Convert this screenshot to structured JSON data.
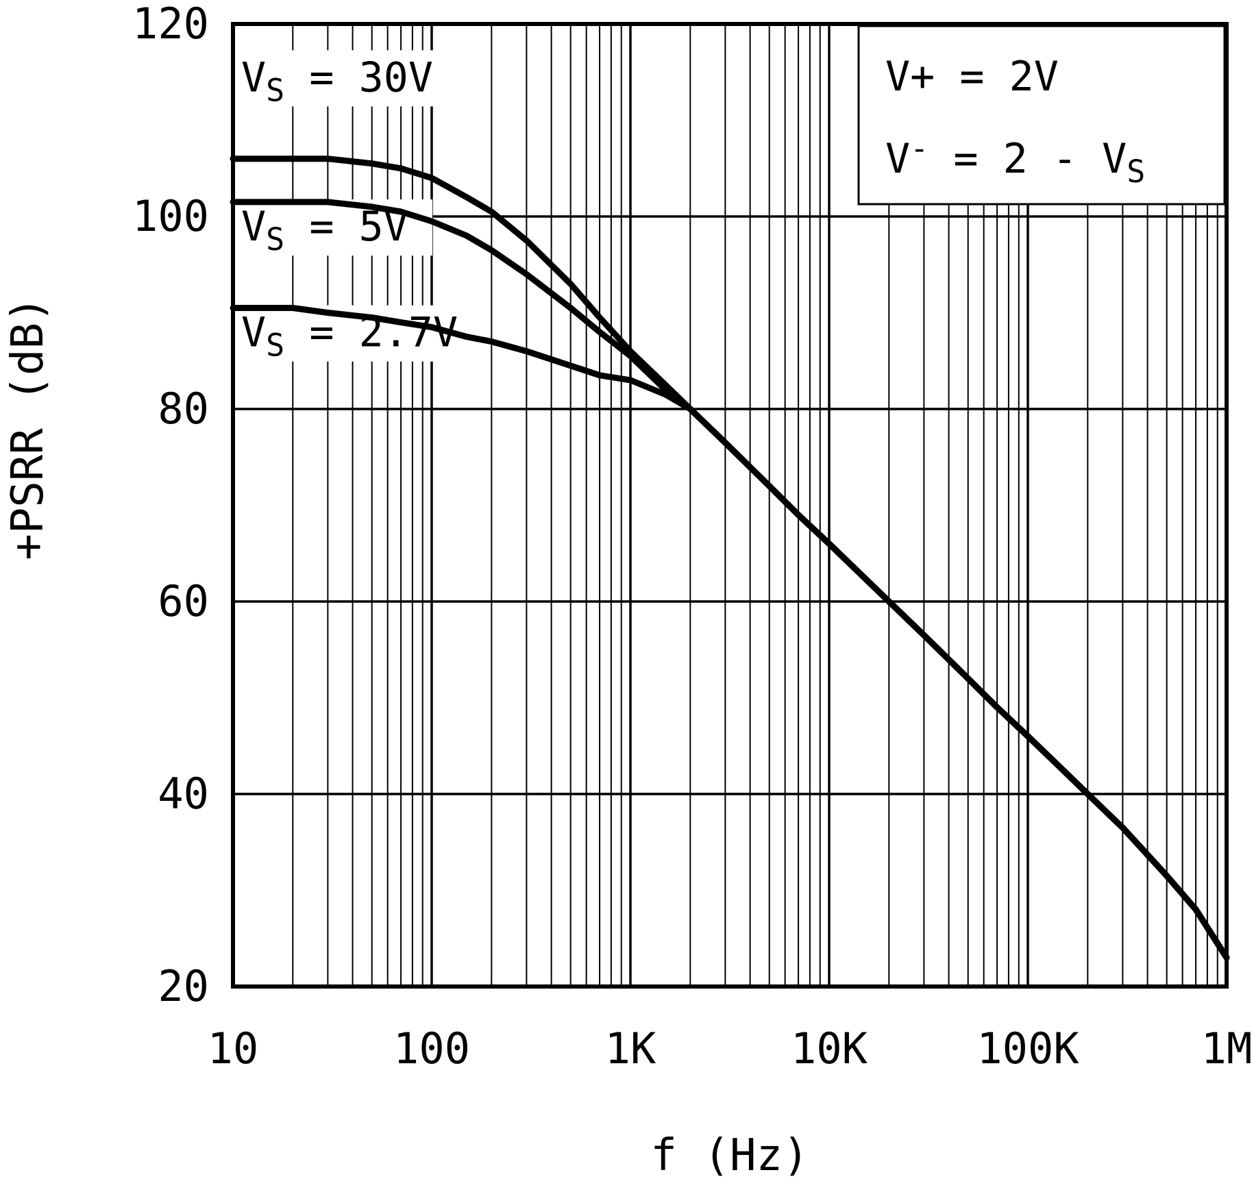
{
  "chart_data": {
    "type": "line",
    "title": "",
    "xlabel": "f (Hz)",
    "ylabel": "+PSRR (dB)",
    "xscale": "log",
    "xlim": [
      10,
      1000000
    ],
    "ylim": [
      20,
      120
    ],
    "xticks": [
      10,
      100,
      1000,
      10000,
      100000,
      1000000
    ],
    "xtick_labels": [
      "10",
      "100",
      "1K",
      "10K",
      "100K",
      "1M"
    ],
    "yticks": [
      20,
      40,
      60,
      80,
      100,
      120
    ],
    "ytick_labels": [
      "20",
      "40",
      "60",
      "80",
      "100",
      "120"
    ],
    "grid": {
      "vertical": "log decades with minor lines 2-9 each decade, full height",
      "horizontal": "major lines every 20 dB",
      "legend_position": "none"
    },
    "colors": {
      "line": "#000000",
      "grid": "#000000",
      "background": "#ffffff"
    },
    "annotation": {
      "line1": "V+ = 2V",
      "line2_text": "V- = 2 - VS",
      "line2_parts": {
        "pre": "V",
        "sup": "-",
        "mid": " = 2 - V",
        "sub": "S"
      }
    },
    "series": [
      {
        "name": "VS = 30V",
        "label_parts": {
          "pre": "V",
          "sub": "S",
          "post": " = 30V"
        },
        "label_anchor": {
          "f": 11,
          "db": 113
        },
        "points": [
          [
            10,
            106
          ],
          [
            20,
            106
          ],
          [
            30,
            106
          ],
          [
            50,
            105.5
          ],
          [
            70,
            105
          ],
          [
            100,
            104
          ],
          [
            150,
            102
          ],
          [
            200,
            100.5
          ],
          [
            300,
            97.5
          ],
          [
            500,
            93
          ],
          [
            700,
            89.5
          ],
          [
            1000,
            86
          ],
          [
            1500,
            82.5
          ],
          [
            2000,
            80
          ],
          [
            3000,
            76.5
          ],
          [
            5000,
            72
          ],
          [
            7000,
            69
          ],
          [
            10000,
            66
          ],
          [
            20000,
            60
          ],
          [
            30000,
            56.5
          ],
          [
            50000,
            52
          ],
          [
            70000,
            49
          ],
          [
            100000,
            46
          ],
          [
            150000,
            42.5
          ],
          [
            200000,
            40
          ],
          [
            300000,
            36.5
          ],
          [
            500000,
            31.5
          ],
          [
            700000,
            28
          ],
          [
            1000000,
            23
          ]
        ]
      },
      {
        "name": "VS = 5V",
        "label_parts": {
          "pre": "V",
          "sub": "S",
          "post": " = 5V"
        },
        "label_anchor": {
          "f": 11,
          "db": 97.5
        },
        "points": [
          [
            10,
            101.5
          ],
          [
            20,
            101.5
          ],
          [
            30,
            101.5
          ],
          [
            50,
            101
          ],
          [
            70,
            100.5
          ],
          [
            100,
            99.5
          ],
          [
            150,
            98
          ],
          [
            200,
            96.5
          ],
          [
            300,
            94
          ],
          [
            500,
            90.5
          ],
          [
            700,
            88
          ],
          [
            1000,
            85.5
          ],
          [
            1500,
            82
          ],
          [
            2000,
            80
          ],
          [
            3000,
            76.5
          ],
          [
            5000,
            72
          ],
          [
            7000,
            69
          ],
          [
            10000,
            66
          ],
          [
            20000,
            60
          ],
          [
            30000,
            56.5
          ],
          [
            50000,
            52
          ],
          [
            70000,
            49
          ],
          [
            100000,
            46
          ],
          [
            150000,
            42.5
          ],
          [
            200000,
            40
          ],
          [
            300000,
            36.5
          ],
          [
            500000,
            31.5
          ],
          [
            700000,
            28
          ],
          [
            1000000,
            23
          ]
        ]
      },
      {
        "name": "VS = 2.7V",
        "label_parts": {
          "pre": "V",
          "sub": "S",
          "post": " = 2.7V"
        },
        "label_anchor": {
          "f": 11,
          "db": 86.5
        },
        "points": [
          [
            10,
            90.5
          ],
          [
            20,
            90.5
          ],
          [
            30,
            90
          ],
          [
            50,
            89.5
          ],
          [
            70,
            89
          ],
          [
            100,
            88.5
          ],
          [
            150,
            87.5
          ],
          [
            200,
            87
          ],
          [
            300,
            86
          ],
          [
            500,
            84.5
          ],
          [
            700,
            83.5
          ],
          [
            1000,
            83
          ],
          [
            1500,
            81.5
          ],
          [
            2000,
            80
          ],
          [
            3000,
            76.5
          ],
          [
            5000,
            72
          ],
          [
            7000,
            69
          ],
          [
            10000,
            66
          ],
          [
            20000,
            60
          ],
          [
            30000,
            56.5
          ],
          [
            50000,
            52
          ],
          [
            70000,
            49
          ],
          [
            100000,
            46
          ],
          [
            150000,
            42.5
          ],
          [
            200000,
            40
          ],
          [
            300000,
            36.5
          ],
          [
            500000,
            31.5
          ],
          [
            700000,
            28
          ],
          [
            1000000,
            23
          ]
        ]
      }
    ]
  }
}
